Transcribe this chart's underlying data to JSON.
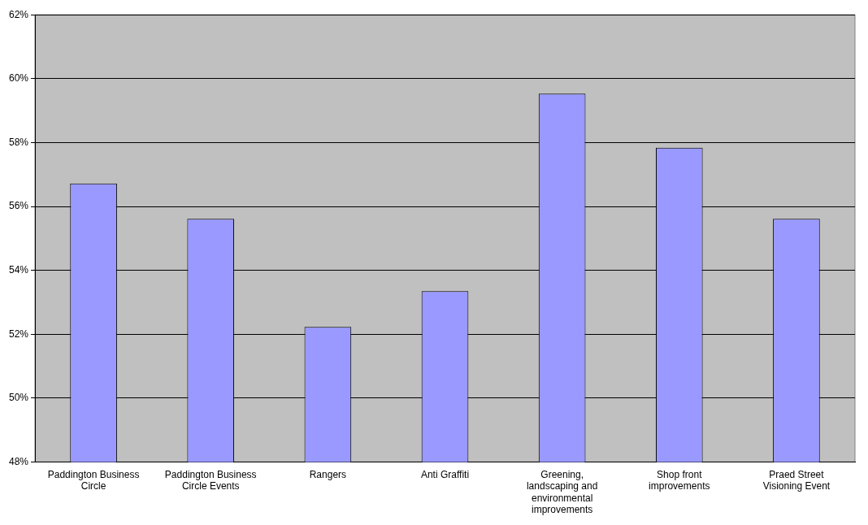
{
  "chart_data": {
    "type": "bar",
    "categories": [
      "Paddington Business Circle",
      "Paddington Business Circle Events",
      "Rangers",
      "Anti Graffiti",
      "Greening, landscaping and environmental improvements",
      "Shop front improvements",
      "Praed Street Visioning Event"
    ],
    "values": [
      56.72,
      55.61,
      52.23,
      53.35,
      59.53,
      57.84,
      55.61
    ],
    "color": "#9999ff",
    "ylim": [
      48,
      62
    ],
    "yticks": [
      {
        "value": 48,
        "label": "48%"
      },
      {
        "value": 50,
        "label": "50%"
      },
      {
        "value": 52,
        "label": "52%"
      },
      {
        "value": 54,
        "label": "54%"
      },
      {
        "value": 56,
        "label": "56%"
      },
      {
        "value": 58,
        "label": "58%"
      },
      {
        "value": 60,
        "label": "60%"
      },
      {
        "value": 62,
        "label": "62%"
      }
    ],
    "grid": "y",
    "legend": false
  }
}
